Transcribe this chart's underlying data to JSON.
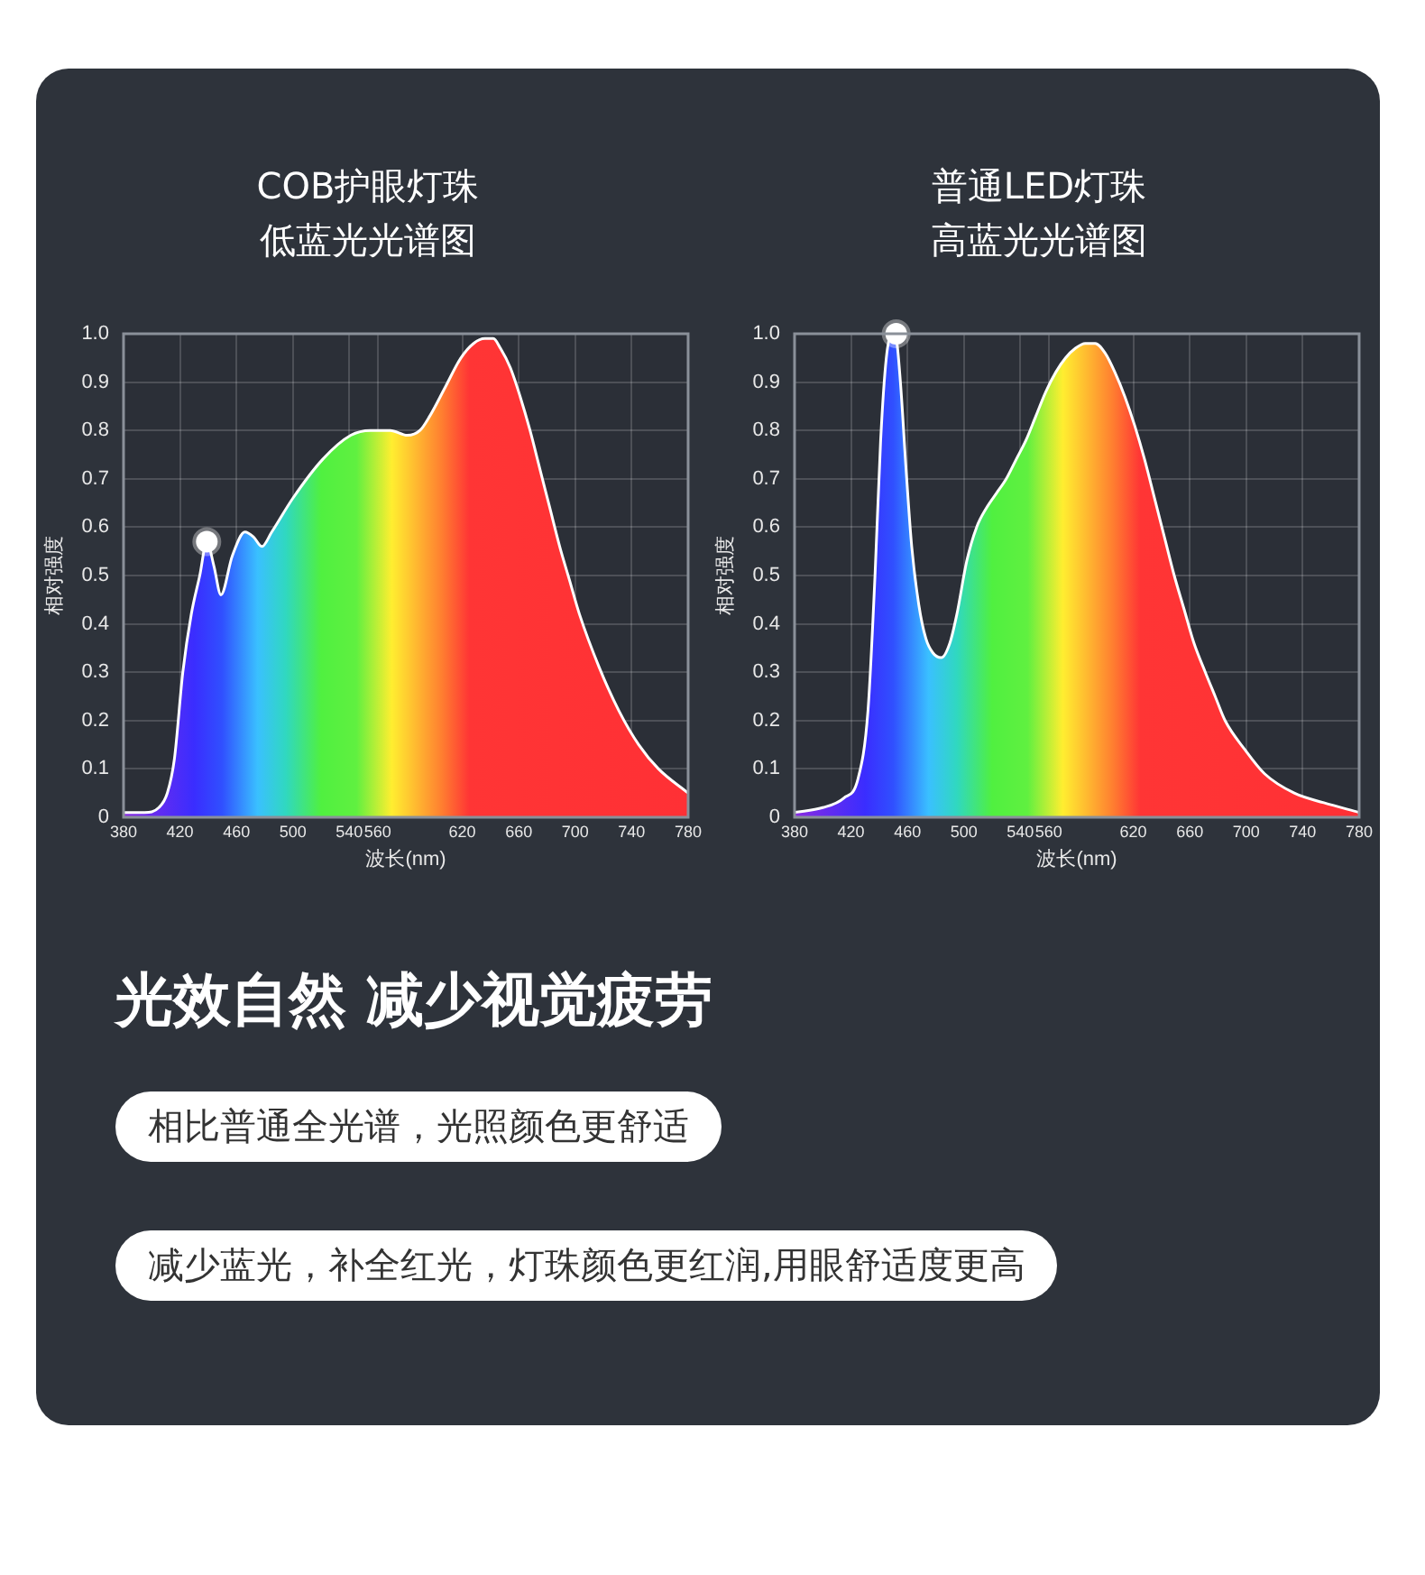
{
  "chart_data": [
    {
      "type": "area",
      "title": "COB护眼灯珠",
      "subtitle": "低蓝光光谱图",
      "xlabel": "波长(nm)",
      "ylabel": "相对强度",
      "grid": true,
      "legend": false,
      "xlim": [
        380,
        780
      ],
      "ylim": [
        0,
        1
      ],
      "xticks": [
        380,
        420,
        460,
        500,
        540,
        560,
        620,
        660,
        700,
        740,
        780
      ],
      "yticks": [
        0,
        0.1,
        0.2,
        0.3,
        0.4,
        0.5,
        0.6,
        0.7,
        0.8,
        0.9,
        {
          "value": 1,
          "label": "1.0"
        }
      ],
      "series": [
        {
          "type": "area",
          "color": "#ffffff",
          "x": [
            380,
            395,
            405,
            411,
            416,
            422,
            428,
            434,
            439,
            444,
            449,
            457,
            466,
            472,
            478,
            485,
            500,
            521,
            541,
            555,
            569,
            581,
            590,
            597,
            608,
            619,
            628,
            636,
            642,
            647,
            654,
            661,
            668,
            675,
            682,
            689,
            696,
            703,
            717,
            731,
            745,
            759,
            780
          ],
          "values": [
            0.01,
            0.01,
            0.02,
            0.05,
            0.12,
            0.3,
            0.42,
            0.5,
            0.57,
            0.52,
            0.46,
            0.54,
            0.59,
            0.58,
            0.56,
            0.59,
            0.66,
            0.74,
            0.79,
            0.8,
            0.8,
            0.79,
            0.8,
            0.83,
            0.89,
            0.95,
            0.98,
            0.99,
            0.99,
            0.97,
            0.93,
            0.87,
            0.8,
            0.72,
            0.64,
            0.56,
            0.49,
            0.42,
            0.31,
            0.22,
            0.15,
            0.1,
            0.05
          ]
        },
        {
          "type": "scatter",
          "color": "#ffffff",
          "x": [
            439
          ],
          "values": [
            0.57
          ]
        }
      ]
    },
    {
      "type": "area",
      "title": "普通LED灯珠",
      "subtitle": "高蓝光光谱图",
      "xlabel": "波长(nm)",
      "ylabel": "相对强度",
      "grid": true,
      "legend": false,
      "xlim": [
        380,
        780
      ],
      "ylim": [
        0,
        1
      ],
      "xticks": [
        380,
        420,
        460,
        500,
        540,
        560,
        620,
        660,
        700,
        740,
        780
      ],
      "yticks": [
        0,
        0.1,
        0.2,
        0.3,
        0.4,
        0.5,
        0.6,
        0.7,
        0.8,
        0.9,
        {
          "value": 1,
          "label": "1.0"
        }
      ],
      "series": [
        {
          "type": "area",
          "color": "#ffffff",
          "x": [
            380,
            400,
            415,
            425,
            432,
            437,
            441,
            445,
            449,
            452,
            455,
            459,
            463,
            468,
            473,
            478,
            484,
            490,
            495,
            502,
            509,
            516,
            523,
            530,
            537,
            544,
            551,
            558,
            565,
            572,
            579,
            586,
            593,
            600,
            607,
            614,
            621,
            628,
            635,
            642,
            649,
            656,
            663,
            671,
            678,
            685,
            699,
            713,
            734,
            755,
            780
          ],
          "values": [
            0.01,
            0.02,
            0.04,
            0.08,
            0.22,
            0.5,
            0.78,
            0.95,
            1.0,
            0.99,
            0.9,
            0.72,
            0.56,
            0.44,
            0.37,
            0.34,
            0.33,
            0.36,
            0.42,
            0.53,
            0.6,
            0.64,
            0.67,
            0.7,
            0.74,
            0.78,
            0.83,
            0.88,
            0.92,
            0.95,
            0.97,
            0.98,
            0.98,
            0.96,
            0.92,
            0.87,
            0.81,
            0.74,
            0.66,
            0.58,
            0.5,
            0.43,
            0.36,
            0.3,
            0.25,
            0.2,
            0.14,
            0.09,
            0.05,
            0.03,
            0.01
          ]
        },
        {
          "type": "scatter",
          "color": "#ffffff",
          "x": [
            452
          ],
          "values": [
            1.0
          ]
        }
      ]
    },
    {
      "type": "other",
      "title": "光效自然 减少视觉疲劳",
      "annotations": [
        "相比普通全光谱，光照颜色更舒适",
        "减少蓝光，补全红光，灯珠颜色更红润,用眼舒适度更高"
      ]
    }
  ]
}
